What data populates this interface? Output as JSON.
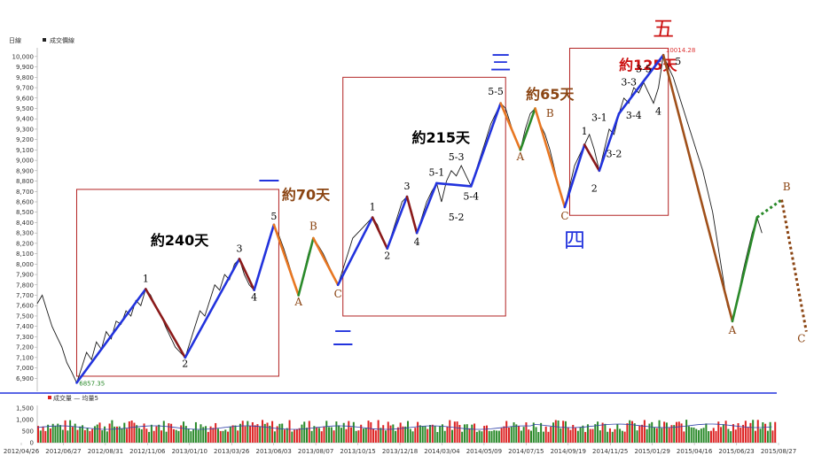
{
  "chart_data": {
    "type": "line",
    "legend_price": "成交價線",
    "period_label": "日線",
    "yticks": [
      6900,
      7000,
      7100,
      7200,
      7300,
      7400,
      7500,
      7600,
      7700,
      7800,
      7900,
      8000,
      8100,
      8200,
      8300,
      8400,
      8500,
      8600,
      8700,
      8800,
      8900,
      9000,
      9100,
      9200,
      9300,
      9400,
      9500,
      9600,
      9700,
      9800,
      9900,
      10000
    ],
    "ylim": [
      6860,
      10050
    ],
    "x_dates": [
      "2012/04/26",
      "2012/06/27",
      "2012/08/31",
      "2012/11/06",
      "2013/01/10",
      "2013/03/26",
      "2013/06/03",
      "2013/08/07",
      "2013/10/15",
      "2013/12/18",
      "2014/03/04",
      "2014/05/09",
      "2014/07/15",
      "2014/09/19",
      "2014/11/25",
      "2015/01/29",
      "2015/04/16",
      "2015/06/23",
      "2015/08/27"
    ],
    "extremes": {
      "high": "10014.28",
      "low": "6857.35"
    },
    "price_path": [
      [
        0,
        7620
      ],
      [
        2,
        7700
      ],
      [
        4,
        7550
      ],
      [
        6,
        7400
      ],
      [
        8,
        7300
      ],
      [
        10,
        7200
      ],
      [
        12,
        7050
      ],
      [
        14,
        6960
      ],
      [
        16,
        6857
      ],
      [
        18,
        7000
      ],
      [
        20,
        7150
      ],
      [
        22,
        7080
      ],
      [
        24,
        7250
      ],
      [
        26,
        7180
      ],
      [
        28,
        7350
      ],
      [
        30,
        7280
      ],
      [
        32,
        7450
      ],
      [
        34,
        7420
      ],
      [
        36,
        7550
      ],
      [
        38,
        7500
      ],
      [
        40,
        7650
      ],
      [
        42,
        7600
      ],
      [
        44,
        7760
      ],
      [
        46,
        7700
      ],
      [
        48,
        7600
      ],
      [
        50,
        7520
      ],
      [
        52,
        7400
      ],
      [
        54,
        7300
      ],
      [
        56,
        7200
      ],
      [
        58,
        7150
      ],
      [
        60,
        7100
      ],
      [
        62,
        7250
      ],
      [
        64,
        7400
      ],
      [
        66,
        7550
      ],
      [
        68,
        7500
      ],
      [
        70,
        7650
      ],
      [
        72,
        7800
      ],
      [
        74,
        7750
      ],
      [
        76,
        7900
      ],
      [
        78,
        7850
      ],
      [
        80,
        8000
      ],
      [
        82,
        8050
      ],
      [
        84,
        7900
      ],
      [
        86,
        7800
      ],
      [
        88,
        7750
      ],
      [
        90,
        7900
      ],
      [
        92,
        8050
      ],
      [
        94,
        8200
      ],
      [
        96,
        8380
      ],
      [
        98,
        8280
      ],
      [
        100,
        8150
      ],
      [
        102,
        8000
      ],
      [
        104,
        7850
      ],
      [
        106,
        7700
      ],
      [
        108,
        7900
      ],
      [
        110,
        8100
      ],
      [
        112,
        8250
      ],
      [
        114,
        8180
      ],
      [
        116,
        8100
      ],
      [
        118,
        8000
      ],
      [
        120,
        7900
      ],
      [
        122,
        7800
      ],
      [
        124,
        7950
      ],
      [
        126,
        8100
      ],
      [
        128,
        8250
      ],
      [
        130,
        8300
      ],
      [
        132,
        8350
      ],
      [
        134,
        8400
      ],
      [
        136,
        8450
      ],
      [
        138,
        8380
      ],
      [
        140,
        8250
      ],
      [
        142,
        8150
      ],
      [
        144,
        8300
      ],
      [
        146,
        8450
      ],
      [
        148,
        8600
      ],
      [
        150,
        8650
      ],
      [
        152,
        8500
      ],
      [
        154,
        8300
      ],
      [
        156,
        8450
      ],
      [
        158,
        8600
      ],
      [
        160,
        8700
      ],
      [
        162,
        8780
      ],
      [
        164,
        8600
      ],
      [
        166,
        8800
      ],
      [
        168,
        8900
      ],
      [
        170,
        8850
      ],
      [
        172,
        8950
      ],
      [
        174,
        8850
      ],
      [
        176,
        8750
      ],
      [
        178,
        8900
      ],
      [
        180,
        9050
      ],
      [
        182,
        9200
      ],
      [
        184,
        9350
      ],
      [
        186,
        9450
      ],
      [
        188,
        9550
      ],
      [
        190,
        9500
      ],
      [
        192,
        9350
      ],
      [
        194,
        9200
      ],
      [
        196,
        9100
      ],
      [
        198,
        9300
      ],
      [
        200,
        9450
      ],
      [
        202,
        9500
      ],
      [
        204,
        9350
      ],
      [
        206,
        9250
      ],
      [
        208,
        9100
      ],
      [
        210,
        8900
      ],
      [
        212,
        8700
      ],
      [
        214,
        8550
      ],
      [
        216,
        8750
      ],
      [
        218,
        8950
      ],
      [
        220,
        9050
      ],
      [
        222,
        9150
      ],
      [
        224,
        9250
      ],
      [
        226,
        9100
      ],
      [
        228,
        8900
      ],
      [
        230,
        9100
      ],
      [
        232,
        9300
      ],
      [
        234,
        9250
      ],
      [
        236,
        9450
      ],
      [
        238,
        9600
      ],
      [
        240,
        9550
      ],
      [
        242,
        9700
      ],
      [
        244,
        9650
      ],
      [
        246,
        9750
      ],
      [
        248,
        9650
      ],
      [
        250,
        9550
      ],
      [
        252,
        9700
      ],
      [
        254,
        10014
      ],
      [
        256,
        9900
      ],
      [
        258,
        9800
      ],
      [
        260,
        9650
      ],
      [
        262,
        9500
      ],
      [
        264,
        9350
      ],
      [
        266,
        9200
      ],
      [
        268,
        9050
      ],
      [
        270,
        8900
      ],
      [
        272,
        8700
      ],
      [
        274,
        8500
      ],
      [
        276,
        8200
      ],
      [
        278,
        7900
      ],
      [
        280,
        7600
      ],
      [
        282,
        7450
      ],
      [
        284,
        7650
      ],
      [
        286,
        7900
      ],
      [
        288,
        8100
      ],
      [
        290,
        8300
      ],
      [
        292,
        8450
      ],
      [
        294,
        8300
      ]
    ],
    "waves": [
      {
        "from": [
          16,
          6857
        ],
        "to": [
          44,
          7760
        ],
        "color": "#2233dd"
      },
      {
        "from": [
          44,
          7760
        ],
        "to": [
          60,
          7100
        ],
        "color": "#8b1a1a"
      },
      {
        "from": [
          60,
          7100
        ],
        "to": [
          82,
          8050
        ],
        "color": "#2233dd"
      },
      {
        "from": [
          82,
          8050
        ],
        "to": [
          88,
          7750
        ],
        "color": "#8b1a1a"
      },
      {
        "from": [
          88,
          7750
        ],
        "to": [
          96,
          8380
        ],
        "color": "#2233dd"
      },
      {
        "from": [
          96,
          8380
        ],
        "to": [
          106,
          7700
        ],
        "color": "#e87722"
      },
      {
        "from": [
          106,
          7700
        ],
        "to": [
          112,
          8250
        ],
        "color": "#2a8a2a"
      },
      {
        "from": [
          112,
          8250
        ],
        "to": [
          122,
          7800
        ],
        "color": "#e87722"
      },
      {
        "from": [
          122,
          7800
        ],
        "to": [
          136,
          8450
        ],
        "color": "#2233dd"
      },
      {
        "from": [
          136,
          8450
        ],
        "to": [
          142,
          8150
        ],
        "color": "#8b1a1a"
      },
      {
        "from": [
          142,
          8150
        ],
        "to": [
          150,
          8650
        ],
        "color": "#2233dd"
      },
      {
        "from": [
          150,
          8650
        ],
        "to": [
          154,
          8300
        ],
        "color": "#8b1a1a"
      },
      {
        "from": [
          154,
          8300
        ],
        "to": [
          162,
          8780
        ],
        "color": "#2233dd"
      },
      {
        "from": [
          162,
          8780
        ],
        "to": [
          176,
          8750
        ],
        "color": "#2233dd"
      },
      {
        "from": [
          176,
          8750
        ],
        "to": [
          188,
          9550
        ],
        "color": "#2233dd"
      },
      {
        "from": [
          188,
          9550
        ],
        "to": [
          196,
          9100
        ],
        "color": "#e87722"
      },
      {
        "from": [
          196,
          9100
        ],
        "to": [
          202,
          9500
        ],
        "color": "#2a8a2a"
      },
      {
        "from": [
          202,
          9500
        ],
        "to": [
          214,
          8550
        ],
        "color": "#e87722"
      },
      {
        "from": [
          214,
          8550
        ],
        "to": [
          222,
          9150
        ],
        "color": "#2233dd"
      },
      {
        "from": [
          222,
          9150
        ],
        "to": [
          228,
          8900
        ],
        "color": "#8b1a1a"
      },
      {
        "from": [
          228,
          8900
        ],
        "to": [
          236,
          9450
        ],
        "color": "#2233dd"
      },
      {
        "from": [
          236,
          9450
        ],
        "to": [
          254,
          10014
        ],
        "color": "#2233dd"
      },
      {
        "from": [
          254,
          10014
        ],
        "to": [
          282,
          7450
        ],
        "color": "#a0501a"
      },
      {
        "from": [
          282,
          7450
        ],
        "to": [
          292,
          8450
        ],
        "color": "#2a8a2a"
      }
    ],
    "wave_labels": [
      {
        "t": "1",
        "x": 44,
        "y": 7830,
        "cls": "wave"
      },
      {
        "t": "2",
        "x": 60,
        "y": 7010,
        "cls": "wave"
      },
      {
        "t": "3",
        "x": 82,
        "y": 8120,
        "cls": "wave"
      },
      {
        "t": "4",
        "x": 88,
        "y": 7650,
        "cls": "wave"
      },
      {
        "t": "5",
        "x": 96,
        "y": 8430,
        "cls": "wave"
      },
      {
        "t": "A",
        "x": 106,
        "y": 7600,
        "cls": "waveA"
      },
      {
        "t": "B",
        "x": 112,
        "y": 8330,
        "cls": "waveA"
      },
      {
        "t": "C",
        "x": 122,
        "y": 7680,
        "cls": "waveA"
      },
      {
        "t": "1",
        "x": 136,
        "y": 8520,
        "cls": "wave"
      },
      {
        "t": "2",
        "x": 142,
        "y": 8050,
        "cls": "wave"
      },
      {
        "t": "3",
        "x": 150,
        "y": 8720,
        "cls": "wave"
      },
      {
        "t": "4",
        "x": 154,
        "y": 8180,
        "cls": "wave"
      },
      {
        "t": "5-1",
        "x": 162,
        "y": 8850,
        "cls": "wave"
      },
      {
        "t": "5-2",
        "x": 170,
        "y": 8420,
        "cls": "wave"
      },
      {
        "t": "5-3",
        "x": 170,
        "y": 9000,
        "cls": "wave"
      },
      {
        "t": "5-4",
        "x": 176,
        "y": 8620,
        "cls": "wave"
      },
      {
        "t": "5-5",
        "x": 186,
        "y": 9630,
        "cls": "wave"
      },
      {
        "t": "A",
        "x": 196,
        "y": 9000,
        "cls": "waveA"
      },
      {
        "t": "B",
        "x": 208,
        "y": 9420,
        "cls": "waveA"
      },
      {
        "t": "C",
        "x": 214,
        "y": 8430,
        "cls": "waveA"
      },
      {
        "t": "1",
        "x": 222,
        "y": 9250,
        "cls": "wave"
      },
      {
        "t": "2",
        "x": 226,
        "y": 8700,
        "cls": "wave"
      },
      {
        "t": "3-1",
        "x": 228,
        "y": 9380,
        "cls": "wave"
      },
      {
        "t": "3-2",
        "x": 234,
        "y": 9030,
        "cls": "wave"
      },
      {
        "t": "3-3",
        "x": 240,
        "y": 9720,
        "cls": "wave"
      },
      {
        "t": "3-4",
        "x": 242,
        "y": 9400,
        "cls": "wave"
      },
      {
        "t": "3-5",
        "x": 246,
        "y": 9850,
        "cls": "wave"
      },
      {
        "t": "4",
        "x": 252,
        "y": 9440,
        "cls": "wave"
      },
      {
        "t": "5",
        "x": 260,
        "y": 9920,
        "cls": "wave"
      },
      {
        "t": "A",
        "x": 282,
        "y": 7330,
        "cls": "waveA"
      },
      {
        "t": "B",
        "x": 304,
        "y": 8710,
        "cls": "waveA"
      },
      {
        "t": "C",
        "x": 310,
        "y": 7250,
        "cls": "waveA"
      }
    ],
    "boxes": [
      {
        "x0": 16,
        "x1": 98,
        "y0": 6920,
        "y1": 8720,
        "label": "約240天",
        "lx": 46,
        "ly": 8180,
        "lc": "#000000"
      },
      {
        "x0": 124,
        "x1": 190,
        "y0": 7500,
        "y1": 9800,
        "label": "約215天",
        "lx": 152,
        "ly": 9170,
        "lc": "#000000"
      },
      {
        "x0": 216,
        "x1": 256,
        "y0": 8470,
        "y1": 10080,
        "label": "約125天",
        "lx": 236,
        "ly": 9870,
        "lc": "#cc1111"
      }
    ],
    "annotations": [
      {
        "t": "約70天",
        "x": 109,
        "y": 8620,
        "color": "#8B4513",
        "size": 16
      },
      {
        "t": "約65天",
        "x": 208,
        "y": 9590,
        "color": "#8B4513",
        "size": 16
      }
    ],
    "cjk_labels": [
      {
        "t": "一",
        "x": 94,
        "y": 8730,
        "color": "#2233dd"
      },
      {
        "t": "二",
        "x": 124,
        "y": 7220,
        "color": "#2233dd"
      },
      {
        "t": "三",
        "x": 188,
        "y": 9870,
        "color": "#2233dd"
      },
      {
        "t": "四",
        "x": 218,
        "y": 8160,
        "color": "#2233dd"
      },
      {
        "t": "五",
        "x": 254,
        "y": 10200,
        "color": "#cc1111"
      }
    ],
    "volume": {
      "legend": "成交量  —  均量5",
      "yticks": [
        "1,500",
        "1,000",
        "500",
        "0"
      ]
    }
  }
}
